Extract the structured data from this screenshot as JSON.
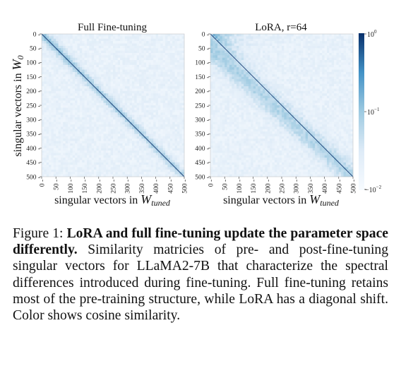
{
  "figure": {
    "panels": [
      {
        "title": "Full Fine-tuning"
      },
      {
        "title": "LoRA, r=64"
      }
    ],
    "y_axis_label": {
      "main": "singular vectors in ",
      "symbol": "W",
      "sub": "0"
    },
    "x_axis_label": {
      "main": "singular vectors in ",
      "symbol": "W",
      "sub": "tuned"
    },
    "y_ticks": [
      "0",
      "50",
      "100",
      "150",
      "200",
      "250",
      "300",
      "350",
      "400",
      "450",
      "500"
    ],
    "x_ticks": [
      "0",
      "50",
      "100",
      "150",
      "200",
      "250",
      "300",
      "350",
      "400",
      "450",
      "500"
    ],
    "colorbar": {
      "ticks": [
        {
          "base": "10",
          "exp": "0"
        },
        {
          "base": "10",
          "exp": "−1"
        },
        {
          "base": "−10",
          "exp": "−2"
        }
      ],
      "color_low": "#ffffff",
      "color_high": "#08306b"
    },
    "heatmaps": {
      "full_finetune_diagonal_shift": 0,
      "lora_diagonal_shift": 60
    }
  },
  "caption": {
    "label": "Figure 1: ",
    "title": "LoRA and full fine-tuning update the parameter space differently.",
    "body": " Similarity matricies of pre- and post-fine-tuning singular vectors for LLaMA2-7B that characterize the spectral differences introduced during fine-tuning.  Full fine-tuning retains most of the pre-training structure, while LoRA has a diagonal shift. Color shows cosine similarity."
  }
}
